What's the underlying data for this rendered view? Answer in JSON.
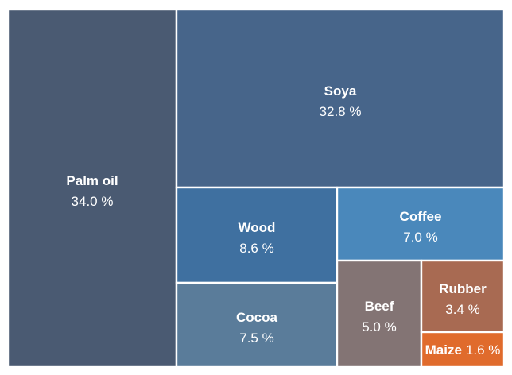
{
  "chart_data": {
    "type": "treemap",
    "title": "",
    "items": [
      {
        "name": "Palm oil",
        "value": 34.0,
        "label": "34.0 %",
        "color": "#4a5a72"
      },
      {
        "name": "Soya",
        "value": 32.8,
        "label": "32.8 %",
        "color": "#47658a"
      },
      {
        "name": "Wood",
        "value": 8.6,
        "label": "8.6 %",
        "color": "#3f70a0"
      },
      {
        "name": "Coffee",
        "value": 7.0,
        "label": "7.0 %",
        "color": "#4a88bb"
      },
      {
        "name": "Cocoa",
        "value": 7.5,
        "label": "7.5 %",
        "color": "#5a7c9a"
      },
      {
        "name": "Beef",
        "value": 5.0,
        "label": "5.0 %",
        "color": "#837474"
      },
      {
        "name": "Rubber",
        "value": 3.4,
        "label": "3.4 %",
        "color": "#a86a52"
      },
      {
        "name": "Maize",
        "value": 1.6,
        "label": "1.6 %",
        "color": "#e06b2c"
      }
    ]
  }
}
